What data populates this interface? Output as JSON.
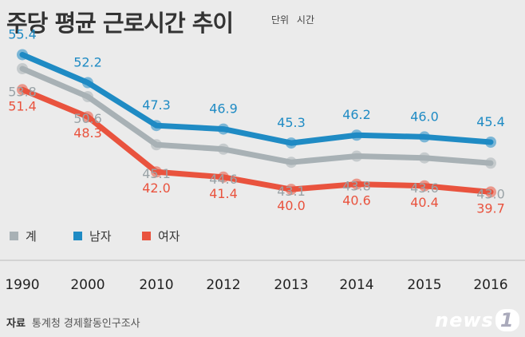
{
  "title": "주당 평균 근로시간 추이",
  "unit_label": "단위",
  "unit_value": "시간",
  "source_label": "자료",
  "source_text": "통계청 경제활동인구조사",
  "logo_text": "news",
  "logo_mark": "1",
  "chart_data": {
    "type": "line",
    "title": "주당 평균 근로시간 추이",
    "categories": [
      "1990",
      "2000",
      "2010",
      "2012",
      "2013",
      "2014",
      "2015",
      "2016"
    ],
    "series": [
      {
        "name": "남자",
        "color": "#1f8bc4",
        "values": [
          55.4,
          52.2,
          47.3,
          46.9,
          45.3,
          46.2,
          46.0,
          45.4
        ]
      },
      {
        "name": "계",
        "color": "#a8b1b5",
        "values": [
          53.8,
          50.6,
          45.1,
          44.6,
          43.1,
          43.8,
          43.6,
          43.0
        ]
      },
      {
        "name": "여자",
        "color": "#e9533e",
        "values": [
          51.4,
          48.3,
          42.0,
          41.4,
          40.0,
          40.6,
          40.4,
          39.7
        ]
      }
    ],
    "ylim": [
      37,
      58
    ],
    "xlabel": "",
    "ylabel": "시간"
  }
}
